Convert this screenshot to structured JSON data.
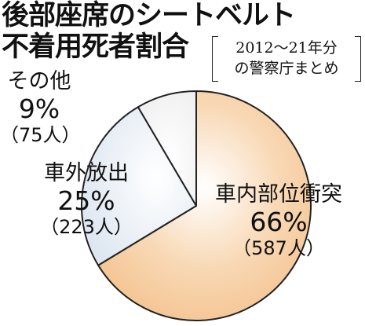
{
  "title": {
    "line1": "後部座席のシートベルト",
    "line2": "不着用死者割合"
  },
  "note": {
    "line1": "2012～21年分",
    "line2": "の警察庁まとめ"
  },
  "colors": {
    "inside": "#f4c28f",
    "ejected": "#dde6f1",
    "other": "#efefef",
    "outline": "#222222"
  },
  "chart_data": {
    "type": "pie",
    "title": "後部座席のシートベルト不着用死者割合",
    "subtitle": "2012～21年分の警察庁まとめ",
    "slices": [
      {
        "label": "車内部位衝突",
        "percent_label": "66%",
        "count_label": "（587人）",
        "value": 587
      },
      {
        "label": "車外放出",
        "percent_label": "25%",
        "count_label": "（223人）",
        "value": 223
      },
      {
        "label": "その他",
        "percent_label": "9%",
        "count_label": "（75人）",
        "value": 75
      }
    ]
  }
}
